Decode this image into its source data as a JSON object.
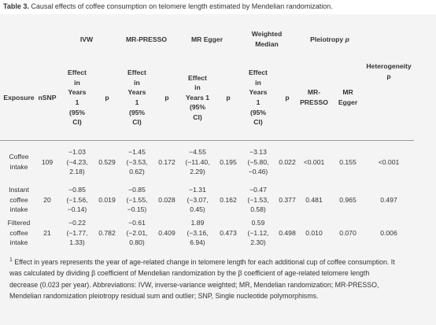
{
  "caption": {
    "label": "Table 3.",
    "text": "Causal effects of coffee consumption on telomere length estimated by Mendelian randomization."
  },
  "table": {
    "group_headers": {
      "ivw": "IVW",
      "mr_presso": "MR-PRESSO",
      "mr_egger": "MR Egger",
      "weighted_median": [
        "Weighted",
        "Median"
      ],
      "pleiotropy": "Pleiotropy p"
    },
    "col_headers": {
      "exposure": "Exposure",
      "nsnp": "nSNP",
      "effect_ivw": [
        "Effect",
        "in",
        "Years",
        "1",
        "(95%",
        "CI)"
      ],
      "p": "p",
      "effect_presso": [
        "Effect",
        "in",
        "Years",
        "1",
        "(95%",
        "CI)"
      ],
      "effect_egger": [
        "Effect",
        "in",
        "Years 1",
        "(95%",
        "CI)"
      ],
      "effect_wm": [
        "Effect",
        "in",
        "Years",
        "1",
        "(95%",
        "CI)"
      ],
      "pleio_presso": [
        "MR-",
        "PRESSO"
      ],
      "pleio_egger": [
        "MR",
        "Egger"
      ],
      "heterogeneity": [
        "Heterogeneity",
        "p"
      ]
    },
    "rows": [
      {
        "exposure": [
          "Coffee",
          "intake"
        ],
        "nsnp": "109",
        "ivw_effect": [
          "−1.03",
          "(−4.23,",
          "2.18)"
        ],
        "ivw_p": "0.529",
        "presso_effect": [
          "−1.45",
          "(−3.53,",
          "0.62)"
        ],
        "presso_p": "0.172",
        "egger_effect": [
          "−4.55",
          "(−11.40,",
          "2.29)"
        ],
        "egger_p": "0.195",
        "wm_effect": [
          "−3.13",
          "(−5.80,",
          "−0.46)"
        ],
        "wm_p": "0.022",
        "pleio_presso": "<0.001",
        "pleio_egger": "0.155",
        "heterogeneity": "<0.001"
      },
      {
        "exposure": [
          "Instant",
          "coffee",
          "intake"
        ],
        "nsnp": "20",
        "ivw_effect": [
          "−0.85",
          "(−1.56,",
          "−0.14)"
        ],
        "ivw_p": "0.019",
        "presso_effect": [
          "−0.85",
          "(−1.55,",
          "−0.15)"
        ],
        "presso_p": "0.028",
        "egger_effect": [
          "−1.31",
          "(−3.07,",
          "0.45)"
        ],
        "egger_p": "0.162",
        "wm_effect": [
          "−0.47",
          "(−1.53,",
          "0.58)"
        ],
        "wm_p": "0.377",
        "pleio_presso": "0.481",
        "pleio_egger": "0.965",
        "heterogeneity": "0.497"
      },
      {
        "exposure": [
          "Filtered",
          "coffee",
          "intake"
        ],
        "nsnp": "21",
        "ivw_effect": [
          "−0.22",
          "(−1.77,",
          "1.33)"
        ],
        "ivw_p": "0.782",
        "presso_effect": [
          "−0.61",
          "(−2.01,",
          "0.80)"
        ],
        "presso_p": "0.409",
        "egger_effect": [
          "1.89",
          "(−3.16,",
          "6.94)"
        ],
        "egger_p": "0.473",
        "wm_effect": [
          "0.59",
          "(−1.12,",
          "2.30)"
        ],
        "wm_p": "0.498",
        "pleio_presso": "0.010",
        "pleio_egger": "0.070",
        "heterogeneity": "0.006"
      }
    ]
  },
  "footnote": {
    "marker": "1",
    "text": "Effect in years represents the year of age-related change in telomere length for each additional cup of coffee consumption. It was calculated by dividing β coefficient of Mendelian randomization by the β coefficient of age-related telomere length decrease (0.023 per year). Abbreviations: IVW, inverse-variance weighted; MR, Mendelian randomization; MR-PRESSO, Mendelian randomization pleiotropy residual sum and outlier; SNP, Single nucleotide polymorphisms."
  }
}
